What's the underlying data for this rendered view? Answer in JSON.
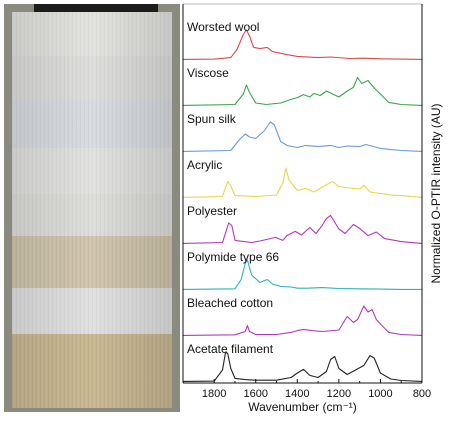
{
  "chart_data": {
    "type": "line",
    "xlabel": "Wavenumber (cm⁻¹)",
    "ylabel": "Normalized O-PTIR intensity (AU)",
    "xlim": [
      1950,
      800
    ],
    "xticks": [
      1800,
      1600,
      1400,
      1200,
      1000,
      800
    ],
    "grid": false,
    "series": [
      {
        "name": "Worsted wool",
        "color": "#d84b4b",
        "x": [
          1950,
          1800,
          1720,
          1690,
          1660,
          1645,
          1630,
          1610,
          1580,
          1545,
          1520,
          1450,
          1400,
          1300,
          1240,
          1150,
          1080,
          1000,
          900,
          800
        ],
        "y": [
          0.02,
          0.03,
          0.08,
          0.35,
          0.85,
          1.0,
          0.8,
          0.42,
          0.38,
          0.42,
          0.28,
          0.18,
          0.12,
          0.08,
          0.1,
          0.05,
          0.06,
          0.04,
          0.03,
          0.02
        ]
      },
      {
        "name": "Viscose",
        "color": "#3aa64a",
        "x": [
          1950,
          1700,
          1660,
          1645,
          1630,
          1600,
          1550,
          1480,
          1430,
          1400,
          1370,
          1340,
          1320,
          1290,
          1260,
          1200,
          1160,
          1130,
          1110,
          1090,
          1060,
          1030,
          1000,
          960,
          900,
          800
        ],
        "y": [
          0.02,
          0.05,
          0.4,
          0.7,
          0.45,
          0.1,
          0.05,
          0.1,
          0.22,
          0.28,
          0.38,
          0.3,
          0.42,
          0.35,
          0.5,
          0.3,
          0.5,
          0.62,
          0.95,
          0.75,
          0.85,
          0.6,
          0.4,
          0.12,
          0.05,
          0.02
        ]
      },
      {
        "name": "Spun silk",
        "color": "#6a9bd8",
        "x": [
          1950,
          1720,
          1680,
          1650,
          1630,
          1600,
          1560,
          1530,
          1510,
          1480,
          1450,
          1400,
          1360,
          1300,
          1240,
          1200,
          1160,
          1100,
          1070,
          1000,
          950,
          900,
          800
        ],
        "y": [
          0.02,
          0.05,
          0.4,
          0.6,
          0.5,
          0.45,
          0.7,
          1.0,
          0.9,
          0.35,
          0.22,
          0.15,
          0.22,
          0.18,
          0.22,
          0.15,
          0.2,
          0.18,
          0.25,
          0.12,
          0.08,
          0.05,
          0.02
        ]
      },
      {
        "name": "Acrylic",
        "color": "#e8d44a",
        "x": [
          1950,
          1760,
          1735,
          1720,
          1700,
          1600,
          1500,
          1470,
          1455,
          1440,
          1400,
          1360,
          1320,
          1250,
          1230,
          1200,
          1170,
          1100,
          1080,
          1050,
          1000,
          950,
          900,
          800
        ],
        "y": [
          0.02,
          0.05,
          0.55,
          0.4,
          0.08,
          0.05,
          0.1,
          0.5,
          1.0,
          0.6,
          0.25,
          0.32,
          0.2,
          0.48,
          0.55,
          0.38,
          0.35,
          0.3,
          0.42,
          0.2,
          0.15,
          0.1,
          0.08,
          0.02
        ]
      },
      {
        "name": "Polyester",
        "color": "#b03ab8",
        "x": [
          1950,
          1760,
          1730,
          1715,
          1700,
          1620,
          1580,
          1505,
          1470,
          1450,
          1410,
          1380,
          1340,
          1310,
          1280,
          1260,
          1240,
          1200,
          1170,
          1130,
          1100,
          1060,
          1020,
          980,
          900,
          800
        ],
        "y": [
          0.02,
          0.05,
          0.7,
          0.62,
          0.12,
          0.05,
          0.1,
          0.22,
          0.12,
          0.28,
          0.42,
          0.3,
          0.55,
          0.35,
          0.62,
          0.85,
          0.95,
          0.5,
          0.35,
          0.65,
          0.52,
          0.28,
          0.4,
          0.18,
          0.08,
          0.02
        ]
      },
      {
        "name": "Polymide type 66",
        "color": "#2bb3b8",
        "x": [
          1950,
          1700,
          1670,
          1650,
          1640,
          1620,
          1580,
          1545,
          1520,
          1480,
          1430,
          1400,
          1350,
          1280,
          1200,
          1100,
          1000,
          900,
          800
        ],
        "y": [
          0.02,
          0.04,
          0.35,
          0.9,
          1.0,
          0.5,
          0.25,
          0.35,
          0.2,
          0.12,
          0.1,
          0.06,
          0.06,
          0.08,
          0.05,
          0.04,
          0.03,
          0.02,
          0.02
        ]
      },
      {
        "name": "Bleached cotton",
        "color": "#b03ab8",
        "x": [
          1950,
          1700,
          1650,
          1640,
          1630,
          1600,
          1500,
          1430,
          1400,
          1370,
          1330,
          1280,
          1200,
          1160,
          1130,
          1110,
          1080,
          1060,
          1040,
          1020,
          1000,
          960,
          900,
          800
        ],
        "y": [
          0.02,
          0.04,
          0.15,
          0.35,
          0.15,
          0.05,
          0.05,
          0.12,
          0.18,
          0.22,
          0.18,
          0.15,
          0.2,
          0.65,
          0.45,
          0.55,
          1.0,
          0.8,
          0.88,
          0.55,
          0.4,
          0.12,
          0.05,
          0.02
        ]
      },
      {
        "name": "Acetate filament",
        "color": "#222222",
        "x": [
          1950,
          1800,
          1760,
          1745,
          1735,
          1720,
          1700,
          1650,
          1600,
          1500,
          1430,
          1400,
          1370,
          1340,
          1300,
          1260,
          1240,
          1220,
          1200,
          1160,
          1120,
          1080,
          1050,
          1030,
          1000,
          950,
          900,
          800
        ],
        "y": [
          0.02,
          0.03,
          0.4,
          1.0,
          0.95,
          0.45,
          0.12,
          0.08,
          0.06,
          0.06,
          0.15,
          0.3,
          0.42,
          0.22,
          0.15,
          0.35,
          0.75,
          0.85,
          0.45,
          0.25,
          0.4,
          0.55,
          0.88,
          0.8,
          0.3,
          0.1,
          0.05,
          0.02
        ]
      }
    ]
  }
}
